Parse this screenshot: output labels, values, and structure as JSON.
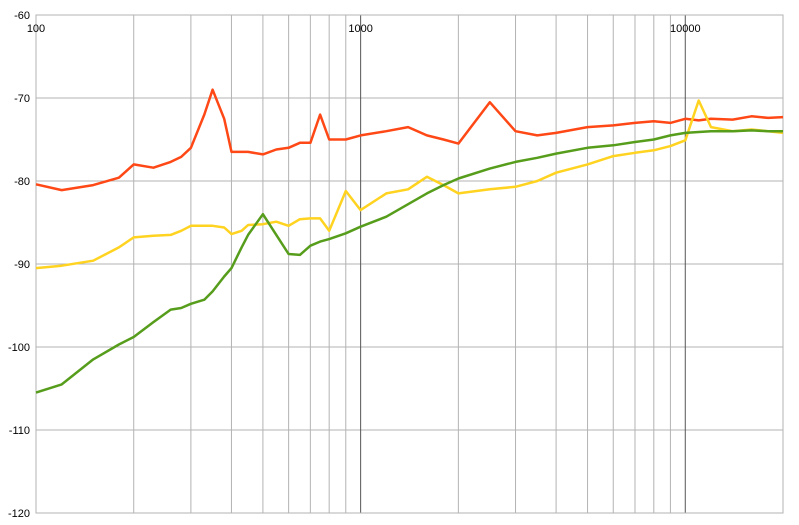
{
  "chart_data": {
    "type": "line",
    "log_x": true,
    "grid": true,
    "x": [
      100,
      120,
      150,
      180,
      200,
      230,
      260,
      280,
      300,
      330,
      350,
      380,
      400,
      430,
      450,
      500,
      550,
      600,
      650,
      700,
      750,
      800,
      900,
      1000,
      1200,
      1400,
      1600,
      1800,
      2000,
      2500,
      3000,
      3500,
      4000,
      5000,
      6000,
      7000,
      8000,
      9000,
      10000,
      11000,
      12000,
      14000,
      16000,
      18000,
      20000
    ],
    "series": [
      {
        "color": "#ff4816",
        "values": [
          -80.4,
          -81.1,
          -80.5,
          -79.6,
          -78,
          -78.4,
          -77.7,
          -77.1,
          -76,
          -72,
          -69,
          -72.5,
          -76.5,
          -76.5,
          -76.5,
          -76.8,
          -76.2,
          -76,
          -75.4,
          -75.4,
          -72,
          -75,
          -75,
          -74.5,
          -74,
          -73.5,
          -74.5,
          -75,
          -75.5,
          -70.5,
          -74,
          -74.5,
          -74.2,
          -73.5,
          -73.3,
          -73,
          -72.8,
          -73,
          -72.5,
          -72.7,
          -72.5,
          -72.6,
          -72.2,
          -72.4,
          -72.3
        ]
      },
      {
        "color": "#ffd320",
        "values": [
          -90.5,
          -90.2,
          -89.6,
          -88,
          -86.8,
          -86.6,
          -86.5,
          -86,
          -85.4,
          -85.4,
          -85.4,
          -85.6,
          -86.4,
          -86,
          -85.3,
          -85.2,
          -84.9,
          -85.4,
          -84.6,
          -84.5,
          -84.5,
          -86,
          -81.2,
          -83.5,
          -81.5,
          -81,
          -79.5,
          -80.5,
          -81.5,
          -81,
          -80.7,
          -80,
          -79,
          -78,
          -77,
          -76.6,
          -76.3,
          -75.8,
          -75.1,
          -70.3,
          -73.5,
          -74,
          -73.8,
          -74,
          -74.2
        ]
      },
      {
        "color": "#579d1c",
        "values": [
          -105.5,
          -104.5,
          -101.5,
          -99.7,
          -98.8,
          -97,
          -95.5,
          -95.3,
          -94.8,
          -94.3,
          -93.3,
          -91.5,
          -90.5,
          -88,
          -86.5,
          -84,
          -86.5,
          -88.8,
          -88.9,
          -87.8,
          -87.3,
          -87,
          -86.3,
          -85.5,
          -84.3,
          -82.8,
          -81.5,
          -80.5,
          -79.7,
          -78.5,
          -77.7,
          -77.2,
          -76.7,
          -76,
          -75.7,
          -75.3,
          -75,
          -74.5,
          -74.2,
          -74.1,
          -74,
          -74,
          -73.9,
          -74,
          -74
        ]
      }
    ],
    "xlim": [
      100,
      20000
    ],
    "xticks": [
      100,
      1000,
      10000
    ],
    "xminorticks": [
      200,
      300,
      400,
      500,
      600,
      700,
      800,
      900,
      2000,
      3000,
      4000,
      5000,
      6000,
      7000,
      8000,
      9000,
      20000
    ],
    "ylim": [
      -120,
      -60
    ],
    "yticks": [
      -120,
      -110,
      -100,
      -90,
      -80,
      -70,
      -60
    ]
  }
}
